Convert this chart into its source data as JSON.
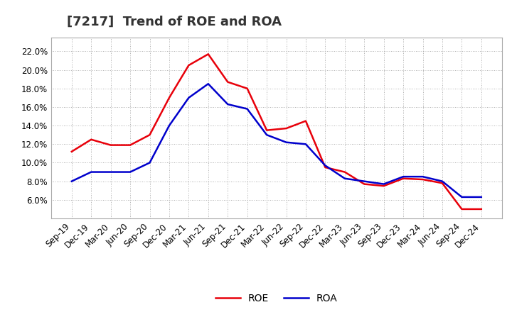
{
  "title": "[7217]  Trend of ROE and ROA",
  "x_labels": [
    "Sep-19",
    "Dec-19",
    "Mar-20",
    "Jun-20",
    "Sep-20",
    "Dec-20",
    "Mar-21",
    "Jun-21",
    "Sep-21",
    "Dec-21",
    "Mar-22",
    "Jun-22",
    "Sep-22",
    "Dec-22",
    "Mar-23",
    "Jun-23",
    "Sep-23",
    "Dec-23",
    "Mar-24",
    "Jun-24",
    "Sep-24",
    "Dec-24"
  ],
  "roe": [
    11.2,
    12.5,
    11.9,
    11.9,
    13.0,
    17.0,
    20.5,
    21.7,
    18.7,
    18.0,
    13.5,
    13.7,
    14.5,
    9.5,
    9.0,
    7.7,
    7.5,
    8.3,
    8.2,
    7.8,
    5.0,
    5.0
  ],
  "roa": [
    8.0,
    9.0,
    9.0,
    9.0,
    10.0,
    14.0,
    17.0,
    18.5,
    16.3,
    15.8,
    13.0,
    12.2,
    12.0,
    9.7,
    8.3,
    8.0,
    7.7,
    8.5,
    8.5,
    8.0,
    6.3,
    6.3
  ],
  "roe_color": "#e8000a",
  "roa_color": "#0000cc",
  "bg_color": "#ffffff",
  "plot_bg_color": "#ffffff",
  "grid_color": "#999999",
  "ylim_min": 4.0,
  "ylim_max": 23.5,
  "yticks": [
    6.0,
    8.0,
    10.0,
    12.0,
    14.0,
    16.0,
    18.0,
    20.0,
    22.0
  ],
  "title_fontsize": 13,
  "legend_fontsize": 10,
  "tick_fontsize": 8.5,
  "line_width": 1.8
}
